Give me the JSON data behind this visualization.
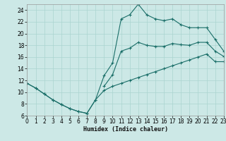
{
  "xlabel": "Humidex (Indice chaleur)",
  "bg_color": "#cce8e6",
  "grid_color": "#aad4d0",
  "line_color": "#1a6e68",
  "xlim": [
    0,
    23
  ],
  "ylim": [
    6,
    25
  ],
  "xticks": [
    0,
    1,
    2,
    3,
    4,
    5,
    6,
    7,
    8,
    9,
    10,
    11,
    12,
    13,
    14,
    15,
    16,
    17,
    18,
    19,
    20,
    21,
    22,
    23
  ],
  "yticks": [
    6,
    8,
    10,
    12,
    14,
    16,
    18,
    20,
    22,
    24
  ],
  "line_top_x": [
    0,
    1,
    2,
    3,
    4,
    5,
    6,
    7,
    8,
    9,
    10,
    11,
    12,
    13,
    14,
    15,
    16,
    17,
    18,
    19,
    20,
    21,
    22,
    23
  ],
  "line_top_y": [
    11.5,
    10.7,
    9.7,
    8.7,
    7.9,
    7.2,
    6.7,
    6.4,
    8.7,
    12.8,
    15.0,
    22.5,
    23.2,
    25.0,
    23.2,
    22.5,
    22.2,
    22.5,
    21.5,
    21.0,
    21.0,
    21.0,
    19.0,
    17.0
  ],
  "line_bot_x": [
    0,
    1,
    2,
    3,
    4,
    5,
    6,
    7,
    8,
    9,
    10,
    11,
    12,
    13,
    14,
    15,
    16,
    17,
    18,
    19,
    20,
    21,
    22,
    23
  ],
  "line_bot_y": [
    11.5,
    10.7,
    9.7,
    8.7,
    7.9,
    7.2,
    6.7,
    6.4,
    8.7,
    10.3,
    11.0,
    11.5,
    12.0,
    12.5,
    13.0,
    13.5,
    14.0,
    14.5,
    15.0,
    15.5,
    16.0,
    16.5,
    15.2,
    15.2
  ],
  "line_mid_x": [
    9,
    10,
    11,
    12,
    13,
    14,
    15,
    16,
    17,
    18,
    19,
    20,
    21,
    22,
    23
  ],
  "line_mid_y": [
    11.0,
    13.0,
    17.0,
    17.5,
    18.5,
    18.0,
    17.8,
    17.8,
    18.3,
    18.1,
    18.0,
    18.5,
    18.5,
    17.0,
    16.1
  ]
}
